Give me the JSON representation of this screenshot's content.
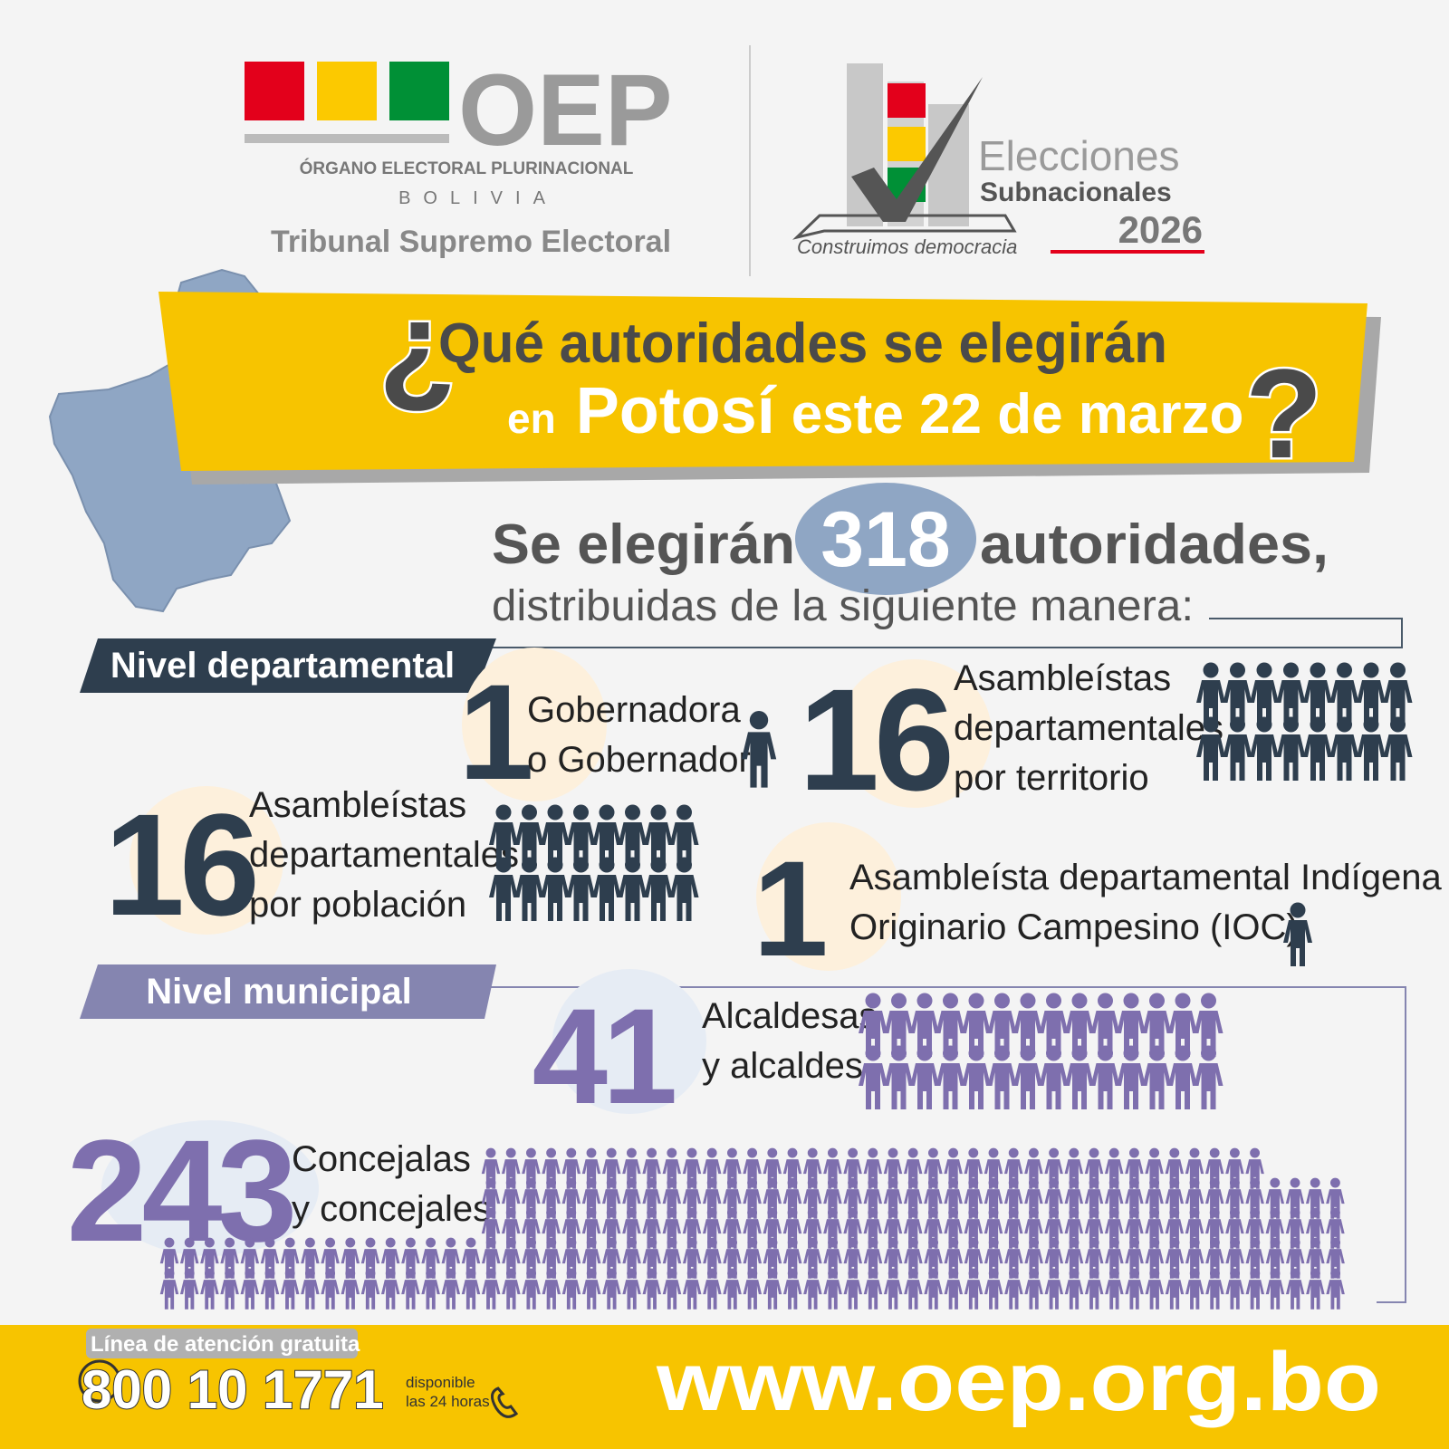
{
  "header": {
    "acronym": "OEP",
    "org_name": "ÓRGANO ELECTORAL PLURINACIONAL",
    "country": "BOLIVIA",
    "tribunal": "Tribunal Supremo Electoral",
    "election": {
      "line1": "Elecciones",
      "line2": "Subnacionales",
      "year": "2026",
      "slogan": "Construimos democracia"
    }
  },
  "banner": {
    "open_mark": "¿",
    "line1": "Qué autoridades se elegirán",
    "prefix": "en",
    "place": "Potosí",
    "date": "este 22 de marzo",
    "close_mark": "?"
  },
  "summary": {
    "lead": "Se elegirán",
    "total": 318,
    "noun": "autoridades,",
    "subtitle": "distribuidas de la siguiente manera:"
  },
  "sections": [
    {
      "title": "Nivel departamental",
      "items": [
        {
          "count": 1,
          "lines": [
            "Gobernadora",
            "o Gobernador"
          ]
        },
        {
          "count": 16,
          "lines": [
            "Asambleístas",
            "departamentales",
            "por territorio"
          ]
        },
        {
          "count": 16,
          "lines": [
            "Asambleístas",
            "departamentales",
            "por población"
          ]
        },
        {
          "count": 1,
          "lines": [
            "Asambleísta departamental Indígena",
            "Originario Campesino (IOC)"
          ]
        }
      ]
    },
    {
      "title": "Nivel municipal",
      "items": [
        {
          "count": 41,
          "lines": [
            "Alcaldesas",
            "y alcaldes"
          ]
        },
        {
          "count": 243,
          "lines": [
            "Concejalas",
            "y concejales"
          ]
        }
      ]
    }
  ],
  "footer": {
    "hotline_label": "Línea de atención gratuita",
    "phone": "800 10 1771",
    "availability": [
      "disponible",
      "las 24 horas"
    ],
    "website": "www.oep.org.bo"
  }
}
